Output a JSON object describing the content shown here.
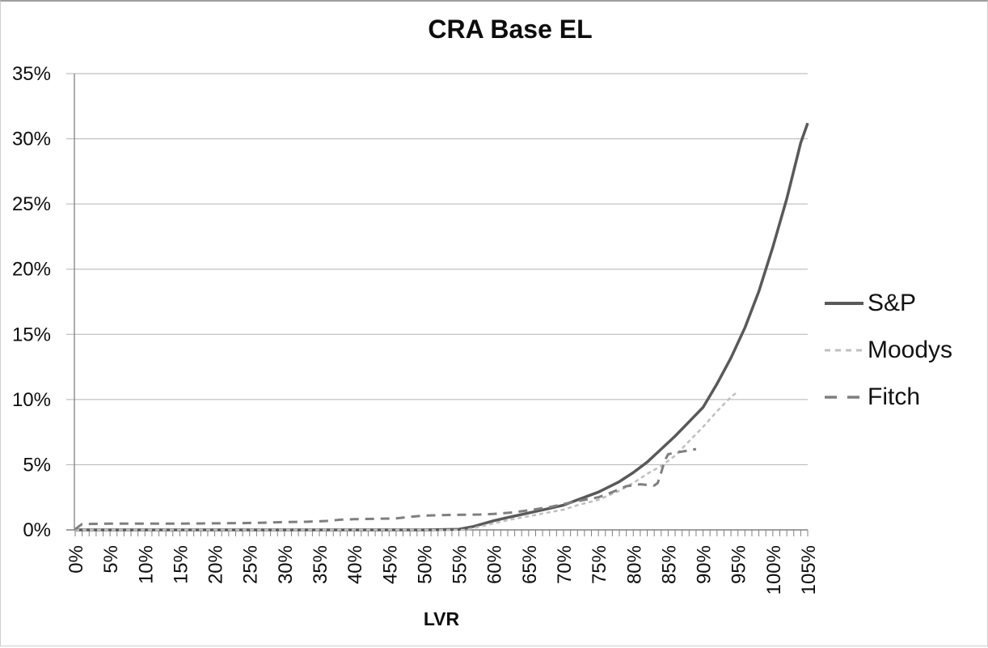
{
  "chart_data": {
    "type": "line",
    "title": "CRA Base EL",
    "xlabel": "LVR",
    "ylabel": "",
    "xlim": [
      0,
      105
    ],
    "ylim": [
      0,
      35
    ],
    "grid": "horizontal-only",
    "legend_position": "right",
    "x_tick_labels": [
      "0%",
      "5%",
      "10%",
      "15%",
      "20%",
      "25%",
      "30%",
      "35%",
      "40%",
      "45%",
      "50%",
      "55%",
      "60%",
      "65%",
      "70%",
      "75%",
      "80%",
      "85%",
      "90%",
      "95%",
      "100%",
      "105%"
    ],
    "x_major_tick_step": 5,
    "x_minor_tick_step": 1,
    "y_tick_labels": [
      "0%",
      "5%",
      "10%",
      "15%",
      "20%",
      "25%",
      "30%",
      "35%"
    ],
    "y_tick_step": 5,
    "colors": {
      "axis": "#808080",
      "grid": "#b3b3b3",
      "text": "#0d0d0d",
      "sp": "#595959",
      "moodys": "#bfbfbf",
      "fitch": "#7f7f7f"
    },
    "series": [
      {
        "name": "S&P",
        "color": "#595959",
        "width": 3.5,
        "dash": "",
        "legend_dash": "",
        "points": [
          [
            0,
            0
          ],
          [
            50,
            0
          ],
          [
            55,
            0.05
          ],
          [
            57,
            0.25
          ],
          [
            60,
            0.7
          ],
          [
            62,
            0.95
          ],
          [
            65,
            1.3
          ],
          [
            68,
            1.65
          ],
          [
            70,
            1.9
          ],
          [
            72,
            2.3
          ],
          [
            75,
            2.9
          ],
          [
            78,
            3.7
          ],
          [
            80,
            4.4
          ],
          [
            82,
            5.2
          ],
          [
            84,
            6.2
          ],
          [
            86,
            7.2
          ],
          [
            88,
            8.3
          ],
          [
            90,
            9.4
          ],
          [
            92,
            11.2
          ],
          [
            94,
            13.2
          ],
          [
            96,
            15.5
          ],
          [
            98,
            18.3
          ],
          [
            100,
            21.7
          ],
          [
            102,
            25.4
          ],
          [
            104,
            29.7
          ],
          [
            105,
            31.2
          ]
        ]
      },
      {
        "name": "Moodys",
        "color": "#bfbfbf",
        "width": 2.5,
        "dash": "5 4",
        "legend_dash": "7 6",
        "points": [
          [
            0,
            0
          ],
          [
            56,
            0
          ],
          [
            58,
            0.25
          ],
          [
            60,
            0.5
          ],
          [
            62,
            0.75
          ],
          [
            65,
            1.05
          ],
          [
            68,
            1.35
          ],
          [
            70,
            1.55
          ],
          [
            72,
            1.9
          ],
          [
            75,
            2.3
          ],
          [
            78,
            3.0
          ],
          [
            80,
            3.6
          ],
          [
            82,
            4.3
          ],
          [
            84,
            4.9
          ],
          [
            85,
            5.3
          ],
          [
            86,
            5.7
          ],
          [
            88,
            6.8
          ],
          [
            90,
            7.9
          ],
          [
            92,
            9.1
          ],
          [
            94,
            10.2
          ],
          [
            95,
            10.6
          ]
        ]
      },
      {
        "name": "Fitch",
        "color": "#7f7f7f",
        "width": 3,
        "dash": "11 8",
        "legend_dash": "15 13",
        "points": [
          [
            0,
            0.05
          ],
          [
            1,
            0.45
          ],
          [
            5,
            0.48
          ],
          [
            10,
            0.48
          ],
          [
            15,
            0.48
          ],
          [
            20,
            0.5
          ],
          [
            24,
            0.52
          ],
          [
            27,
            0.55
          ],
          [
            30,
            0.6
          ],
          [
            33,
            0.62
          ],
          [
            36,
            0.68
          ],
          [
            38,
            0.78
          ],
          [
            40,
            0.82
          ],
          [
            43,
            0.85
          ],
          [
            46,
            0.88
          ],
          [
            48,
            1.0
          ],
          [
            50,
            1.1
          ],
          [
            54,
            1.15
          ],
          [
            58,
            1.18
          ],
          [
            60,
            1.22
          ],
          [
            63,
            1.35
          ],
          [
            65,
            1.5
          ],
          [
            68,
            1.75
          ],
          [
            70,
            1.98
          ],
          [
            72,
            2.2
          ],
          [
            75,
            2.5
          ],
          [
            77,
            2.9
          ],
          [
            79,
            3.35
          ],
          [
            81,
            3.5
          ],
          [
            83,
            3.4
          ],
          [
            83.5,
            3.6
          ],
          [
            84,
            4.4
          ],
          [
            84.5,
            5.3
          ],
          [
            85,
            5.8
          ],
          [
            86,
            5.92
          ],
          [
            87.5,
            6.05
          ],
          [
            89,
            6.2
          ]
        ]
      }
    ]
  }
}
